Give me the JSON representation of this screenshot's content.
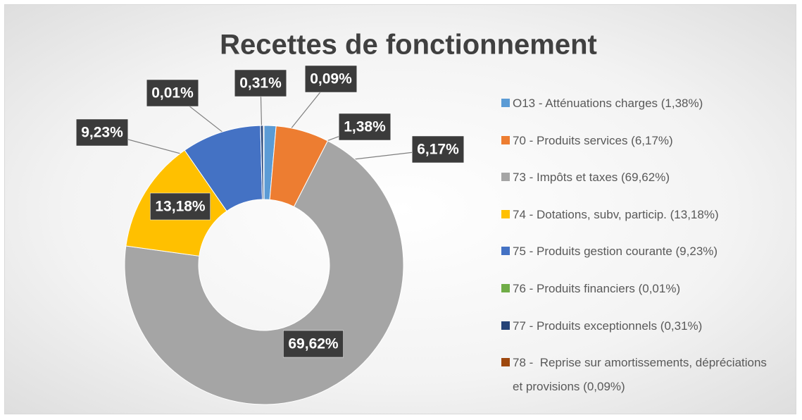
{
  "chart_data": {
    "type": "donut",
    "title": "Recettes de fonctionnement",
    "categories": [
      "O13 - Atténuations charges (1,38%)",
      "70 - Produits services (6,17%)",
      "73 - Impôts et taxes (69,62%)",
      "74 - Dotations, subv, particip. (13,18%)",
      "75 - Produits gestion courante (9,23%)",
      "76 - Produits financiers (0,01%)",
      "77 - Produits exceptionnels (0,31%)",
      "78 -  Reprise sur amortissements, dépréciations et provisions (0,09%)"
    ],
    "values": [
      1.38,
      6.17,
      69.62,
      13.18,
      9.23,
      0.01,
      0.31,
      0.09
    ],
    "value_labels": [
      "1,38%",
      "6,17%",
      "69,62%",
      "13,18%",
      "9,23%",
      "0,01%",
      "0,31%",
      "0,09%"
    ],
    "colors": [
      "#5b9bd5",
      "#ed7d31",
      "#a5a5a5",
      "#ffc000",
      "#4472c4",
      "#70ad47",
      "#264478",
      "#9e480e"
    ],
    "legend": "right"
  }
}
